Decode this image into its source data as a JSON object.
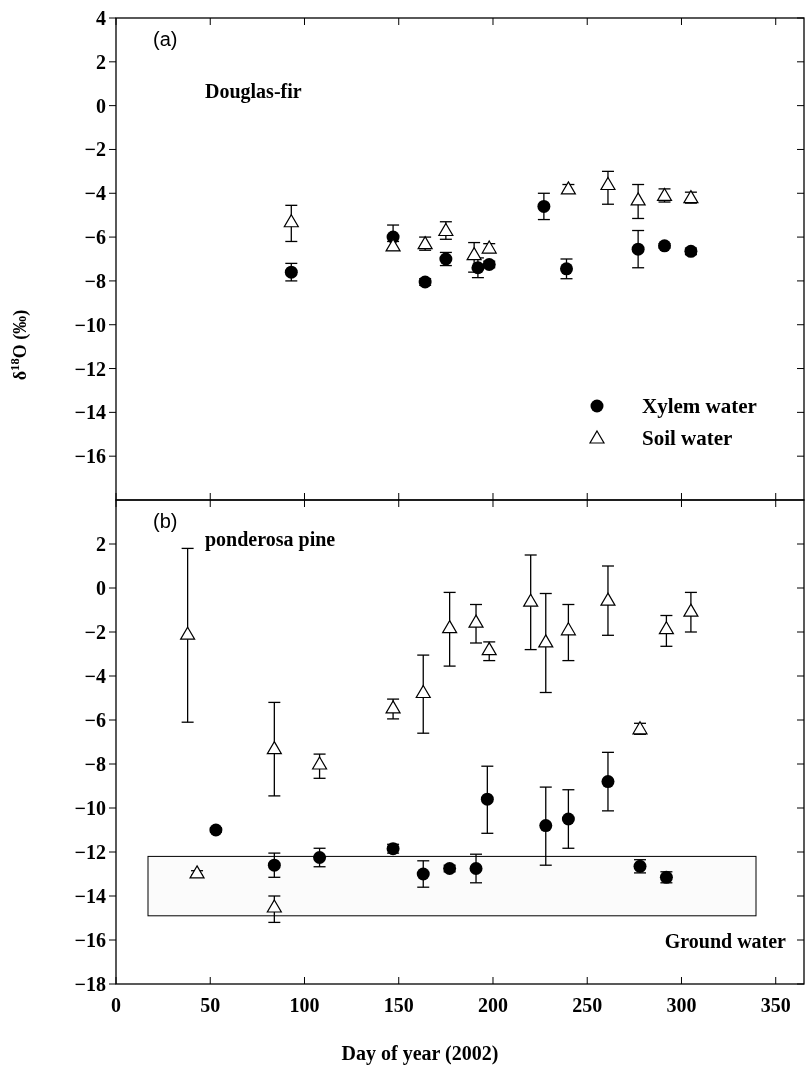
{
  "chart_data": [
    {
      "type": "scatter",
      "ylabel": "δ$^{18}$O (‰)",
      "annotations": [
        "(a)",
        "Douglas-fir"
      ],
      "xlim": [
        0,
        365
      ],
      "xticks": [
        0,
        50,
        100,
        150,
        200,
        250,
        300,
        350
      ],
      "ylim": [
        -18,
        4
      ],
      "yticks": [
        4,
        2,
        0,
        -2,
        -4,
        -6,
        -8,
        -10,
        -12,
        -14,
        -16
      ],
      "tick_labels": "y",
      "legend": "bottom right",
      "grid": false,
      "series": [
        {
          "name": "Xylem water",
          "color": "#000000",
          "marker": "circle",
          "x": [
            93,
            147,
            164,
            175,
            192,
            198,
            227,
            239,
            277,
            291,
            305
          ],
          "values": [
            -7.6,
            -6.0,
            -8.05,
            -7.0,
            -7.4,
            -7.25,
            -4.6,
            -7.45,
            -6.55,
            -6.4,
            -6.65
          ],
          "errors": [
            0.4,
            0.55,
            0.15,
            0.3,
            0.45,
            0.15,
            0.6,
            0.45,
            0.85,
            0.1,
            0.15
          ]
        },
        {
          "name": "Soil water",
          "color": "#000000",
          "marker": "triangle",
          "x": [
            93,
            147,
            164,
            175,
            190,
            198,
            240,
            261,
            277,
            291,
            305
          ],
          "values": [
            -5.3,
            -6.4,
            -6.3,
            -5.7,
            -6.8,
            -6.5,
            -3.8,
            -3.6,
            -4.3,
            -4.1,
            -4.2
          ],
          "errors": [
            [
              -6.2,
              -4.55
            ],
            0.2,
            0.3,
            0.4,
            [
              -7.6,
              -6.25
            ],
            0.2,
            0.2,
            [
              -4.5,
              -3.0
            ],
            [
              -5.15,
              -3.6
            ],
            0.3,
            0.25
          ]
        }
      ]
    },
    {
      "type": "scatter",
      "xlabel": "Day of year (2002)",
      "annotations": [
        "(b)",
        "ponderosa pine"
      ],
      "xlim": [
        0,
        365
      ],
      "xticks": [
        0,
        50,
        100,
        150,
        200,
        250,
        300,
        350
      ],
      "ylim": [
        -18,
        4
      ],
      "yticks": [
        2,
        0,
        -2,
        -4,
        -6,
        -8,
        -10,
        -12,
        -14,
        -16,
        -18
      ],
      "grid": false,
      "bands": [
        {
          "axis": "y",
          "from": -14.9,
          "to": -12.2,
          "label": "Ground water",
          "color": "#fbfbfb"
        }
      ],
      "series": [
        {
          "color": "#000000",
          "marker": "circle",
          "x": [
            53,
            84,
            108,
            147,
            163,
            177,
            191,
            197,
            228,
            240,
            261,
            278,
            292
          ],
          "values": [
            -11.0,
            -12.6,
            -12.25,
            -11.85,
            -13.0,
            -12.75,
            -12.75,
            -9.6,
            -10.8,
            -10.5,
            -8.8,
            -12.65,
            -13.15
          ],
          "errors": [
            0.1,
            [
              -13.15,
              -12.05
            ],
            0.42,
            0.2,
            0.6,
            0.15,
            0.65,
            [
              -11.15,
              -8.1
            ],
            [
              -12.6,
              -9.05
            ],
            1.33,
            1.33,
            0.3,
            0.25
          ]
        },
        {
          "color": "#000000",
          "marker": "triangle",
          "x": [
            38,
            43,
            84,
            84,
            108,
            147,
            163,
            177,
            191,
            198,
            220,
            228,
            240,
            261,
            278,
            292,
            305
          ],
          "values": [
            -2.1,
            -12.95,
            -7.3,
            -14.5,
            -8.0,
            -5.45,
            -4.75,
            -1.8,
            -1.55,
            -2.8,
            -0.6,
            -2.45,
            -1.9,
            -0.55,
            -6.4,
            -1.85,
            -1.05
          ],
          "errors": [
            [
              -6.1,
              1.8
            ],
            0.1,
            [
              -9.45,
              -5.2
            ],
            [
              -15.2,
              -14.0
            ],
            [
              -8.65,
              -7.55
            ],
            [
              -5.95,
              -5.05
            ],
            [
              -6.6,
              -3.05
            ],
            [
              -3.55,
              -0.2
            ],
            [
              -2.5,
              -0.75
            ],
            [
              -3.3,
              -2.45
            ],
            [
              -2.8,
              1.5
            ],
            [
              -4.75,
              -0.25
            ],
            [
              -3.3,
              -0.75
            ],
            [
              -2.15,
              1.0
            ],
            0.25,
            [
              -2.65,
              -1.25
            ],
            [
              -2.0,
              -0.2
            ]
          ]
        }
      ]
    }
  ]
}
